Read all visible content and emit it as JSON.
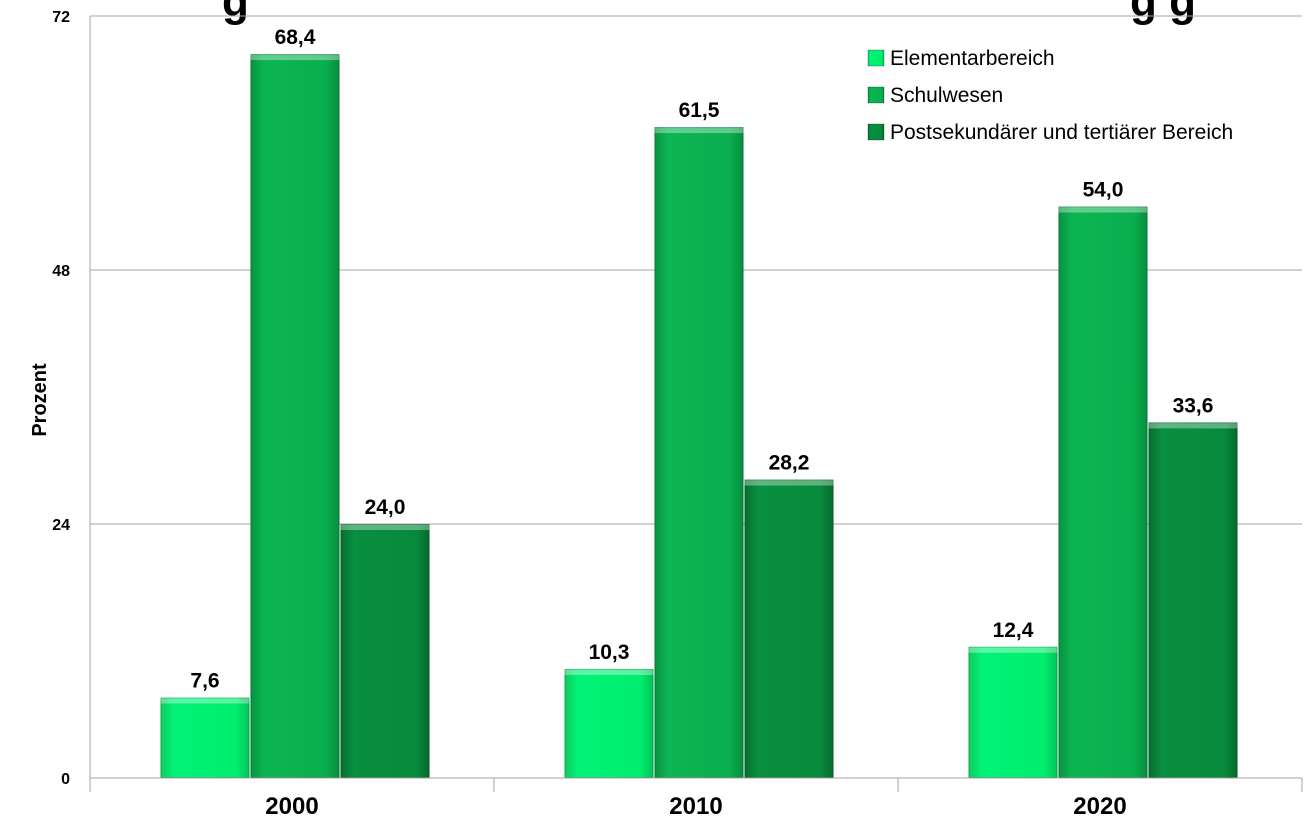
{
  "chart_data": {
    "type": "bar",
    "title": "",
    "xlabel": "",
    "ylabel": "Prozent",
    "ylim": [
      0,
      72
    ],
    "yticks": [
      0,
      24,
      48,
      72
    ],
    "grid": true,
    "legend_position": "top-right",
    "categories": [
      "2000",
      "2010",
      "2020"
    ],
    "series": [
      {
        "name": "Elementarbereich",
        "values": [
          7.6,
          10.3,
          12.4
        ],
        "labels": [
          "7,6",
          "10,3",
          "12,4"
        ],
        "color": "#00ee6e"
      },
      {
        "name": "Schulwesen",
        "values": [
          68.4,
          61.5,
          54.0
        ],
        "labels": [
          "68,4",
          "61,5",
          "54,0"
        ],
        "color": "#0aae4e"
      },
      {
        "name": "Postsekundärer und tertiärer Bereich",
        "values": [
          24.0,
          28.2,
          33.6
        ],
        "labels": [
          "24,0",
          "28,2",
          "33,6"
        ],
        "color": "#078a3c"
      }
    ]
  }
}
